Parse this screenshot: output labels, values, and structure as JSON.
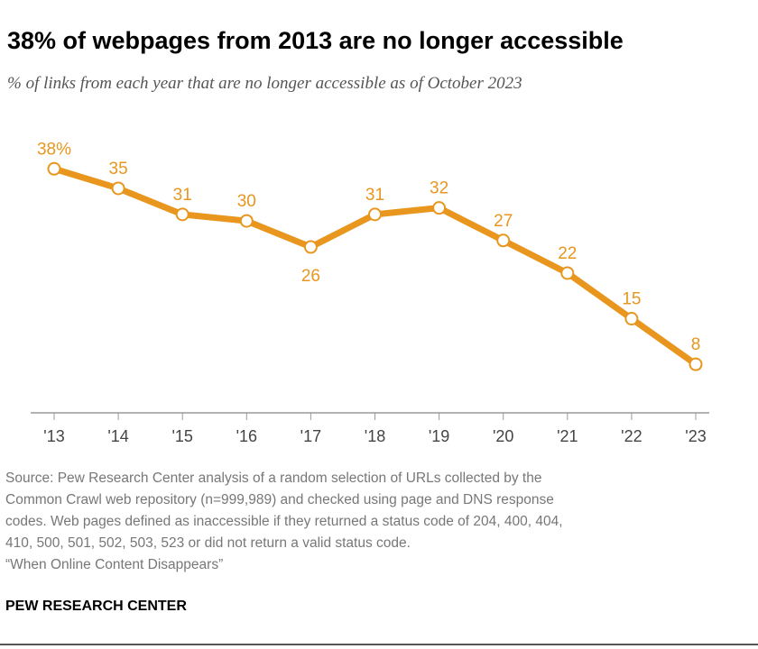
{
  "title": "38% of webpages from 2013 are no longer accessible",
  "subtitle": "% of links from each year that are no longer accessible as of October 2023",
  "chart_data": {
    "type": "line",
    "categories": [
      "'13",
      "'14",
      "'15",
      "'16",
      "'17",
      "'18",
      "'19",
      "'20",
      "'21",
      "'22",
      "'23"
    ],
    "values": [
      38,
      35,
      31,
      30,
      26,
      31,
      32,
      27,
      22,
      15,
      8
    ],
    "data_labels": [
      "38%",
      "35",
      "31",
      "30",
      "26",
      "31",
      "32",
      "27",
      "22",
      "15",
      "8"
    ],
    "label_below": [
      false,
      false,
      false,
      false,
      true,
      false,
      false,
      false,
      false,
      false,
      false
    ],
    "ylim": [
      0,
      40
    ],
    "grid": false,
    "color": "#E8961E"
  },
  "notes": [
    "Source: Pew Research Center analysis of a random selection of URLs collected by the",
    "Common Crawl web repository (n=999,989) and checked using page and DNS response",
    "codes. Web pages defined as inaccessible if they returned a status code of 204, 400, 404,",
    "410, 500, 501, 502, 503, 523 or did not return a valid status code.",
    "“When Online Content Disappears”"
  ],
  "brand": "PEW RESEARCH CENTER"
}
